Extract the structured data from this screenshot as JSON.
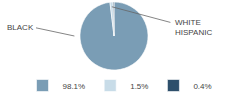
{
  "chart_data": {
    "type": "pie",
    "categories": [
      "98.1%",
      "1.5%",
      "0.4%"
    ],
    "values": [
      98.1,
      1.5,
      0.4
    ],
    "colors": [
      "#7a9db5",
      "#c8dce8",
      "#2e4f6b"
    ],
    "legend": "bottom",
    "annotations": [
      "BLACK",
      "WHITE\nHISPANIC"
    ]
  }
}
